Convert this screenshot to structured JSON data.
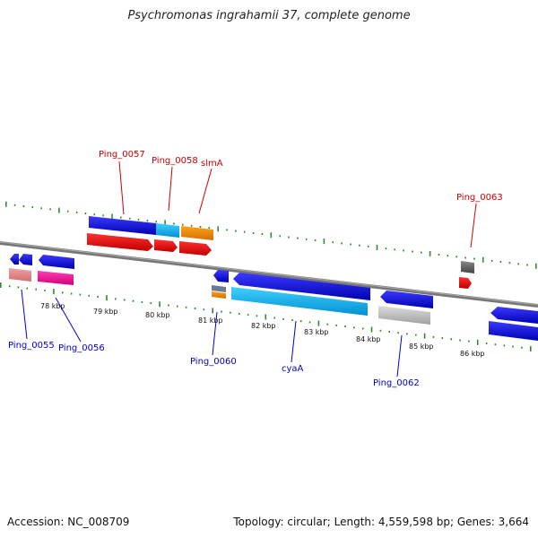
{
  "title": "Psychromonas ingrahamii 37, complete genome",
  "footer": {
    "accession": "Accession: NC_008709",
    "summary": "Topology: circular; Length: 4,559,598 bp; Genes: 3,664"
  },
  "colors": {
    "forward_label": "#cc0000",
    "reverse_label": "#0000cc",
    "tick_mark": "#2e8b2e",
    "backbone": "#888888"
  },
  "ruler": {
    "labels": [
      "78 kbp",
      "79 kbp",
      "80 kbp",
      "81 kbp",
      "82 kbp",
      "83 kbp",
      "84 kbp",
      "85 kbp",
      "86 kbp"
    ]
  },
  "gene_labels": {
    "forward": [
      "Ping_0057",
      "Ping_0058",
      "slmA",
      "Ping_0063"
    ],
    "reverse": [
      "Ping_0055",
      "Ping_0056",
      "Ping_0060",
      "cyaA",
      "Ping_0062"
    ]
  }
}
